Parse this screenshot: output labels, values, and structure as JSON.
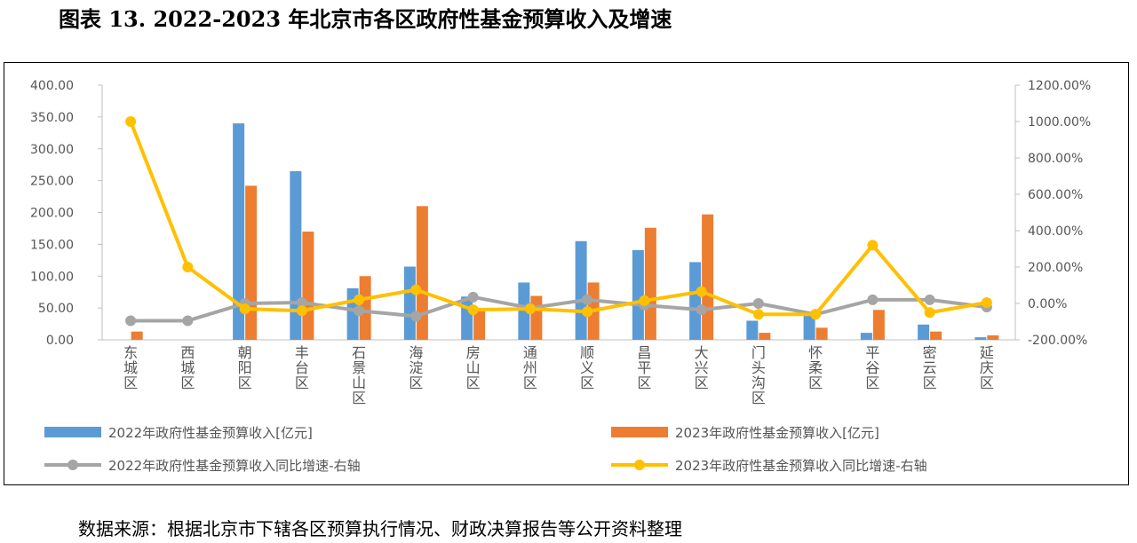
{
  "page": {
    "title": "图表 13. 2022-2023 年北京市各区政府性基金预算收入及增速",
    "source": "数据来源：根据北京市下辖各区预算执行情况、财政决算报告等公开资料整理"
  },
  "colors": {
    "blue": "#5b9bd5",
    "orange": "#ed7d31",
    "gray": "#a5a5a5",
    "yellow": "#ffc000"
  },
  "chart_data": {
    "type": "bar",
    "categories": [
      "东城区",
      "西城区",
      "朝阳区",
      "丰台区",
      "石景山区",
      "海淀区",
      "房山区",
      "通州区",
      "顺义区",
      "昌平区",
      "大兴区",
      "门头沟区",
      "怀柔区",
      "平谷区",
      "密云区",
      "延庆区"
    ],
    "yticks_left": [
      "0.00",
      "50.00",
      "100.00",
      "150.00",
      "200.00",
      "250.00",
      "300.00",
      "350.00",
      "400.00"
    ],
    "yticks_right": [
      "-200.00%",
      "0.00%",
      "200.00%",
      "400.00%",
      "600.00%",
      "800.00%",
      "1000.00%",
      "1200.00%"
    ],
    "ylim_left": [
      0,
      400
    ],
    "ylim_right": [
      -200,
      1200
    ],
    "series": [
      {
        "name": "2022年政府性基金预算收入[亿元]",
        "kind": "bar",
        "axis": "left",
        "values": [
          0,
          0,
          340,
          265,
          81,
          115,
          68,
          90,
          155,
          141,
          122,
          30,
          42,
          11,
          24,
          4
        ]
      },
      {
        "name": "2023年政府性基金预算收入[亿元]",
        "kind": "bar",
        "axis": "left",
        "values": [
          13,
          0,
          242,
          170,
          100,
          210,
          48,
          69,
          90,
          176,
          197,
          11,
          19,
          47,
          13,
          7
        ]
      },
      {
        "name": "2022年政府性基金预算收入同比增速-右轴",
        "kind": "line",
        "axis": "right",
        "values": [
          -95,
          -95,
          0,
          5,
          -40,
          -70,
          35,
          -25,
          20,
          -10,
          -35,
          0,
          -60,
          20,
          20,
          -20
        ]
      },
      {
        "name": "2023年政府性基金预算收入同比增速-右轴",
        "kind": "line",
        "axis": "right",
        "values": [
          1000,
          200,
          -30,
          -40,
          20,
          75,
          -35,
          -30,
          -45,
          15,
          65,
          -60,
          -60,
          320,
          -50,
          5
        ]
      }
    ],
    "legend_position": "bottom",
    "grid": false
  }
}
